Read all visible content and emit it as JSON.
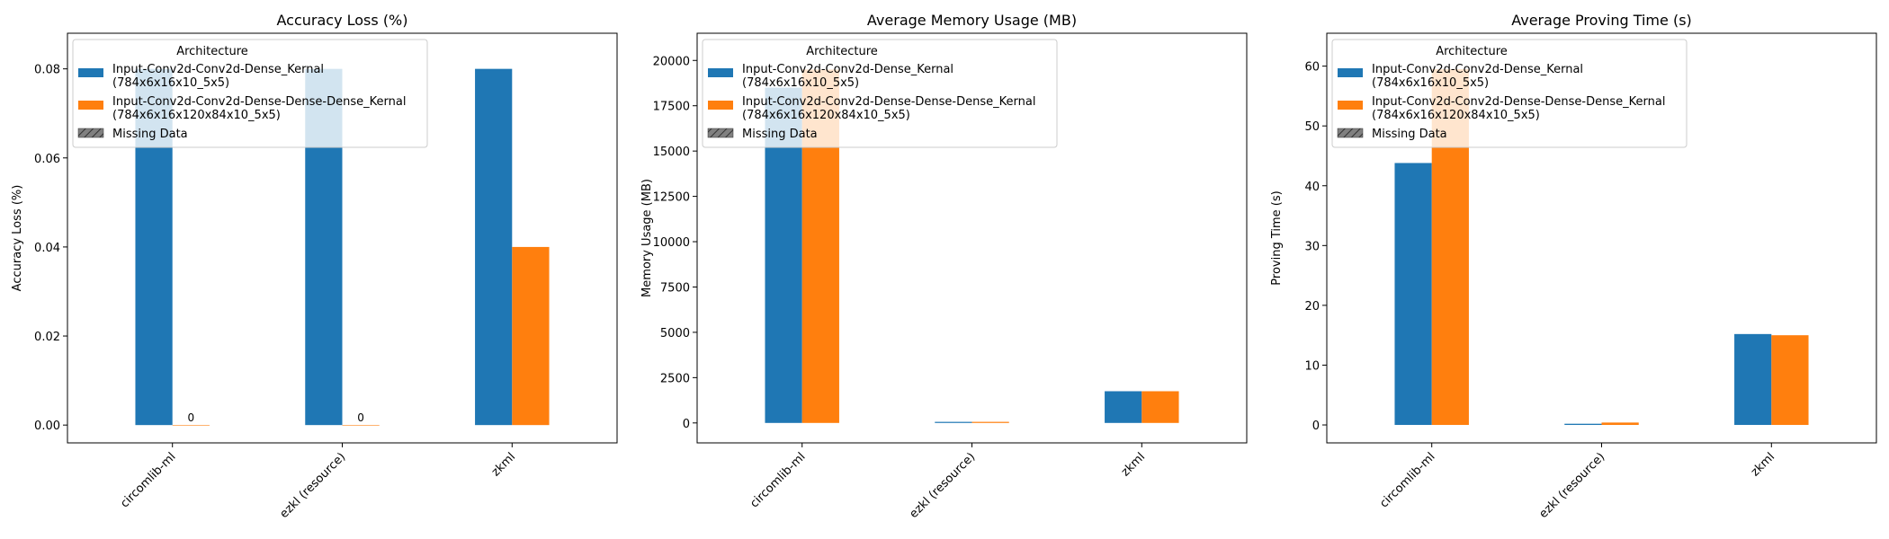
{
  "colors": {
    "series_1": "#1f77b4",
    "series_2": "#ff7f0e",
    "missing": "#808080"
  },
  "chart_data": [
    {
      "type": "bar",
      "title": "Accuracy Loss (%)",
      "xlabel": "",
      "ylabel": "Accuracy Loss (%)",
      "categories": [
        "circomlib-ml",
        "ezkl (resource)",
        "zkml"
      ],
      "ylim": [
        -0.004,
        0.088
      ],
      "yticks": [
        0.0,
        0.02,
        0.04,
        0.06,
        0.08
      ],
      "ytick_labels": [
        "0.00",
        "0.02",
        "0.04",
        "0.06",
        "0.08"
      ],
      "series": [
        {
          "name": "Input-Conv2d-Conv2d-Dense_Kernal (784x6x16x10_5x5)",
          "values": [
            0.08,
            0.08,
            0.08
          ]
        },
        {
          "name": "Input-Conv2d-Conv2d-Dense-Dense-Dense_Kernal (784x6x16x120x84x10_5x5)",
          "values": [
            0,
            0,
            0.04
          ]
        }
      ],
      "data_labels": [
        {
          "category": "circomlib-ml",
          "series": 2,
          "text": "0"
        },
        {
          "category": "ezkl (resource)",
          "series": 2,
          "text": "0"
        }
      ],
      "legend": {
        "title": "Architecture",
        "placement": "top-left",
        "entries": [
          {
            "line1": "Input-Conv2d-Conv2d-Dense_Kernal",
            "line2": "(784x6x16x10_5x5)"
          },
          {
            "line1": "Input-Conv2d-Conv2d-Dense-Dense-Dense_Kernal",
            "line2": "(784x6x16x120x84x10_5x5)"
          },
          {
            "line1": "Missing Data",
            "line2": ""
          }
        ]
      },
      "grid": false
    },
    {
      "type": "bar",
      "title": "Average Memory Usage (MB)",
      "xlabel": "",
      "ylabel": "Memory Usage (MB)",
      "categories": [
        "circomlib-ml",
        "ezkl (resource)",
        "zkml"
      ],
      "ylim": [
        -1100,
        21500
      ],
      "yticks": [
        0,
        2500,
        5000,
        7500,
        10000,
        12500,
        15000,
        17500,
        20000
      ],
      "ytick_labels": [
        "0",
        "2500",
        "5000",
        "7500",
        "10000",
        "12500",
        "15000",
        "17500",
        "20000"
      ],
      "series": [
        {
          "name": "Input-Conv2d-Conv2d-Dense_Kernal (784x6x16x10_5x5)",
          "values": [
            18500,
            60,
            1750
          ]
        },
        {
          "name": "Input-Conv2d-Conv2d-Dense-Dense-Dense_Kernal (784x6x16x120x84x10_5x5)",
          "values": [
            19500,
            60,
            1750
          ]
        }
      ],
      "data_labels": [],
      "legend": {
        "title": "Architecture",
        "placement": "top-left",
        "entries": [
          {
            "line1": "Input-Conv2d-Conv2d-Dense_Kernal",
            "line2": "(784x6x16x10_5x5)"
          },
          {
            "line1": "Input-Conv2d-Conv2d-Dense-Dense-Dense_Kernal",
            "line2": "(784x6x16x120x84x10_5x5)"
          },
          {
            "line1": "Missing Data",
            "line2": ""
          }
        ]
      },
      "grid": false
    },
    {
      "type": "bar",
      "title": "Average Proving Time (s)",
      "xlabel": "",
      "ylabel": "Proving Time (s)",
      "categories": [
        "circomlib-ml",
        "ezkl (resource)",
        "zkml"
      ],
      "ylim": [
        -3,
        65.5
      ],
      "yticks": [
        0,
        10,
        20,
        30,
        40,
        50,
        60
      ],
      "ytick_labels": [
        "0",
        "10",
        "20",
        "30",
        "40",
        "50",
        "60"
      ],
      "series": [
        {
          "name": "Input-Conv2d-Conv2d-Dense_Kernal (784x6x16x10_5x5)",
          "values": [
            43.8,
            0.2,
            15.2
          ]
        },
        {
          "name": "Input-Conv2d-Conv2d-Dense-Dense-Dense_Kernal (784x6x16x120x84x10_5x5)",
          "values": [
            59.5,
            0.4,
            15.0
          ]
        }
      ],
      "data_labels": [],
      "legend": {
        "title": "Architecture",
        "placement": "top-left",
        "entries": [
          {
            "line1": "Input-Conv2d-Conv2d-Dense_Kernal",
            "line2": "(784x6x16x10_5x5)"
          },
          {
            "line1": "Input-Conv2d-Conv2d-Dense-Dense-Dense_Kernal",
            "line2": "(784x6x16x120x84x10_5x5)"
          },
          {
            "line1": "Missing Data",
            "line2": ""
          }
        ]
      },
      "grid": false
    }
  ]
}
